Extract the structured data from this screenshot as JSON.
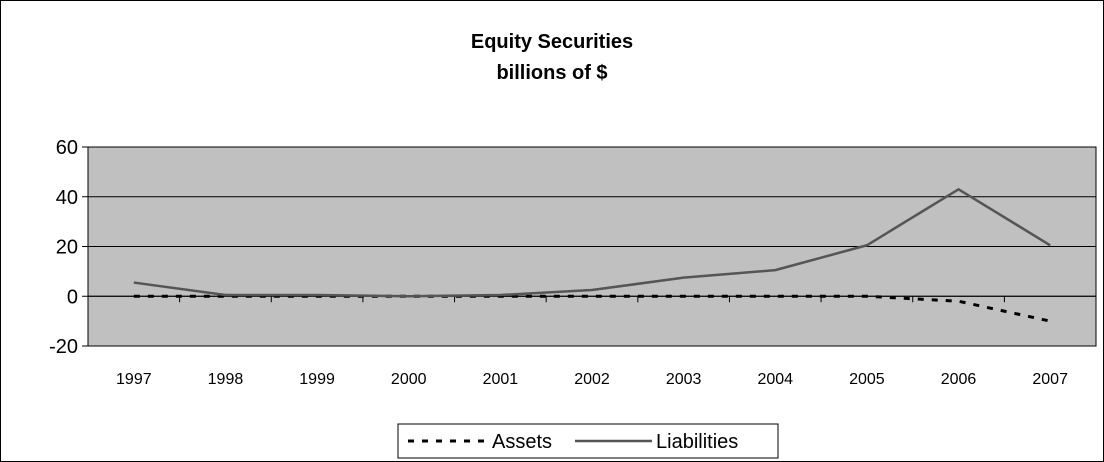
{
  "chart_data": {
    "type": "line",
    "title": "Equity Securities",
    "subtitle": "billions of $",
    "categories": [
      "1997",
      "1998",
      "1999",
      "2000",
      "2001",
      "2002",
      "2003",
      "2004",
      "2005",
      "2006",
      "2007"
    ],
    "series": [
      {
        "name": "Assets",
        "values": [
          0,
          0,
          0,
          0,
          0,
          0,
          0,
          0,
          0,
          -2,
          -10
        ],
        "color": "#000000",
        "style": "dashed"
      },
      {
        "name": "Liabilities",
        "values": [
          5.5,
          0.5,
          0.5,
          0,
          0.5,
          2.5,
          7.5,
          10.5,
          20.5,
          43,
          20.5
        ],
        "color": "#555555",
        "style": "solid"
      }
    ],
    "yticks": [
      -20,
      0,
      20,
      40,
      60
    ],
    "ylim": [
      -20,
      60
    ],
    "grid": true,
    "plot_background": "#c0c0c0",
    "legend_position": "bottom"
  }
}
